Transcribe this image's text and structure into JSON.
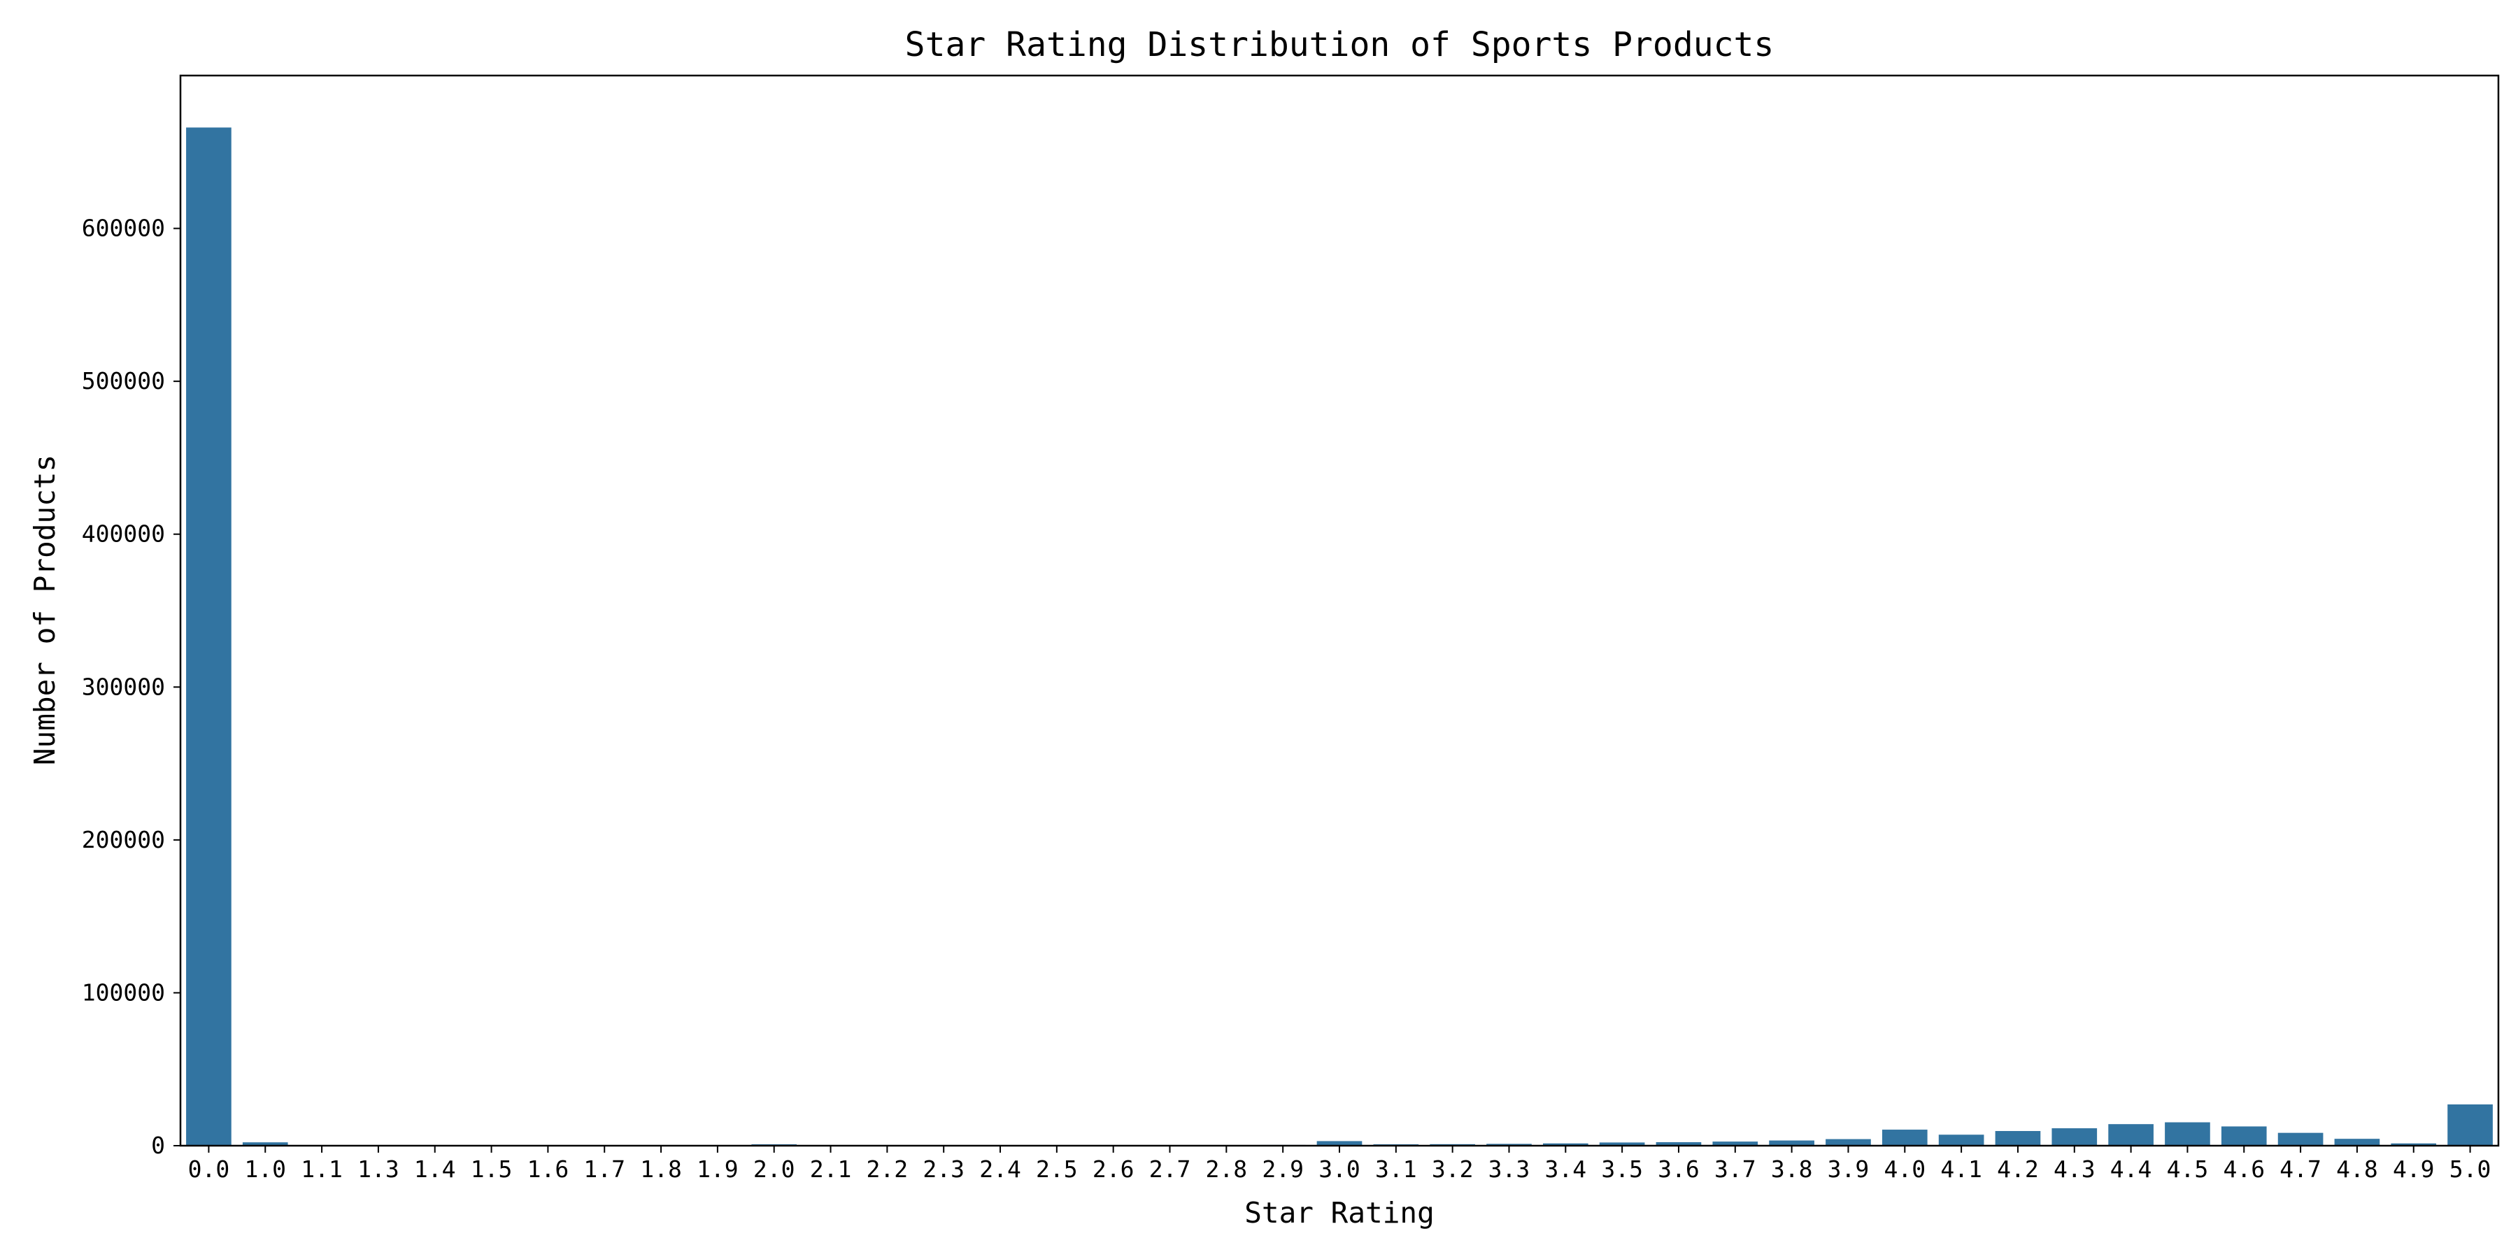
{
  "chart_data": {
    "type": "bar",
    "title": "Star Rating Distribution of Sports Products",
    "xlabel": "Star Rating",
    "ylabel": "Number of Products",
    "categories": [
      "0.0",
      "1.0",
      "1.1",
      "1.3",
      "1.4",
      "1.5",
      "1.6",
      "1.7",
      "1.8",
      "1.9",
      "2.0",
      "2.1",
      "2.2",
      "2.3",
      "2.4",
      "2.5",
      "2.6",
      "2.7",
      "2.8",
      "2.9",
      "3.0",
      "3.1",
      "3.2",
      "3.3",
      "3.4",
      "3.5",
      "3.6",
      "3.7",
      "3.8",
      "3.9",
      "4.0",
      "4.1",
      "4.2",
      "4.3",
      "4.4",
      "4.5",
      "4.6",
      "4.7",
      "4.8",
      "4.9",
      "5.0"
    ],
    "values": [
      666000,
      2200,
      300,
      150,
      300,
      250,
      200,
      150,
      200,
      200,
      900,
      200,
      300,
      250,
      300,
      400,
      350,
      400,
      450,
      500,
      3000,
      900,
      1000,
      1200,
      1500,
      2100,
      2300,
      2700,
      3400,
      4300,
      10500,
      7200,
      9600,
      11400,
      14100,
      15300,
      12600,
      8400,
      4500,
      1500,
      27000
    ],
    "yticks": [
      0,
      100000,
      200000,
      300000,
      400000,
      500000,
      600000
    ],
    "ylim": [
      0,
      700000
    ],
    "bar_color": "#3274a1",
    "grid": false,
    "legend": "none"
  }
}
